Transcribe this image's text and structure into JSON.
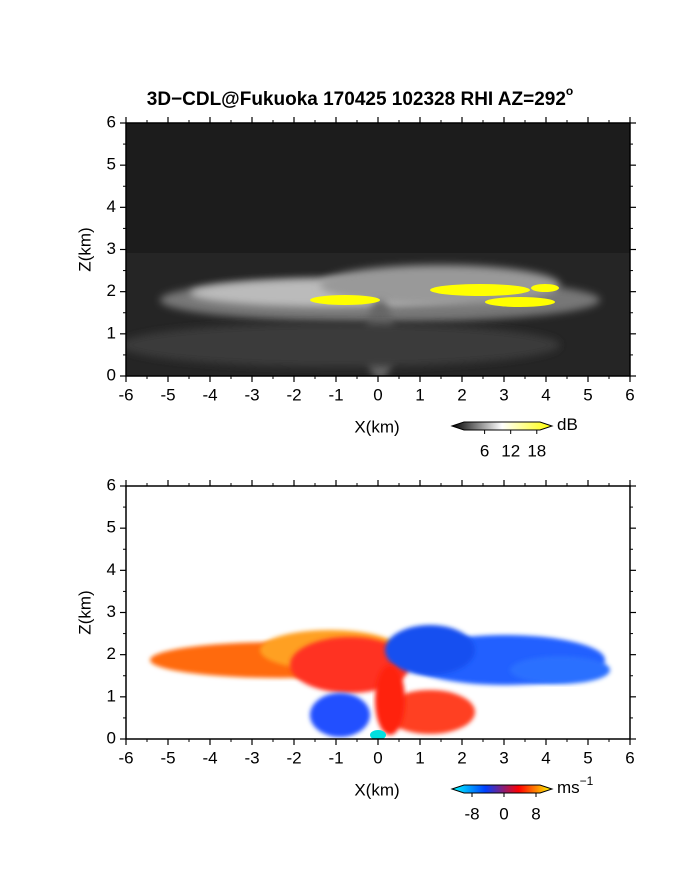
{
  "chart_data": [
    {
      "type": "rhi",
      "title": "3D−CDL@Fukuoka 170425 102328 RHI AZ=292",
      "title_superscript": "o",
      "x_label": "X(km)",
      "y_label": "Z(km)",
      "xlim": [
        -6,
        6
      ],
      "ylim": [
        0,
        6
      ],
      "xticks": [
        -6,
        -5,
        -4,
        -3,
        -2,
        -1,
        0,
        1,
        2,
        3,
        4,
        5,
        6
      ],
      "yticks": [
        0,
        1,
        2,
        3,
        4,
        5,
        6
      ],
      "colorbar": {
        "unit": "dB",
        "clim": [
          -1.5,
          21.5
        ],
        "ticks": [
          6,
          12,
          18
        ],
        "colors": [
          "#000000",
          "#ffffff",
          "#ffff00"
        ]
      }
    },
    {
      "type": "rhi",
      "x_label": "X(km)",
      "y_label": "Z(km)",
      "xlim": [
        -6,
        6
      ],
      "ylim": [
        0,
        6
      ],
      "xticks": [
        -6,
        -5,
        -4,
        -3,
        -2,
        -1,
        0,
        1,
        2,
        3,
        4,
        5,
        6
      ],
      "yticks": [
        0,
        1,
        2,
        3,
        4,
        5,
        6
      ],
      "colorbar": {
        "unit": "ms",
        "unit_superscript": "−1",
        "clim": [
          -13,
          12
        ],
        "ticks": [
          -8,
          0,
          8
        ],
        "colors": [
          "#00ffff",
          "#0040ff",
          "#ff0000",
          "#ffff00"
        ]
      }
    }
  ]
}
